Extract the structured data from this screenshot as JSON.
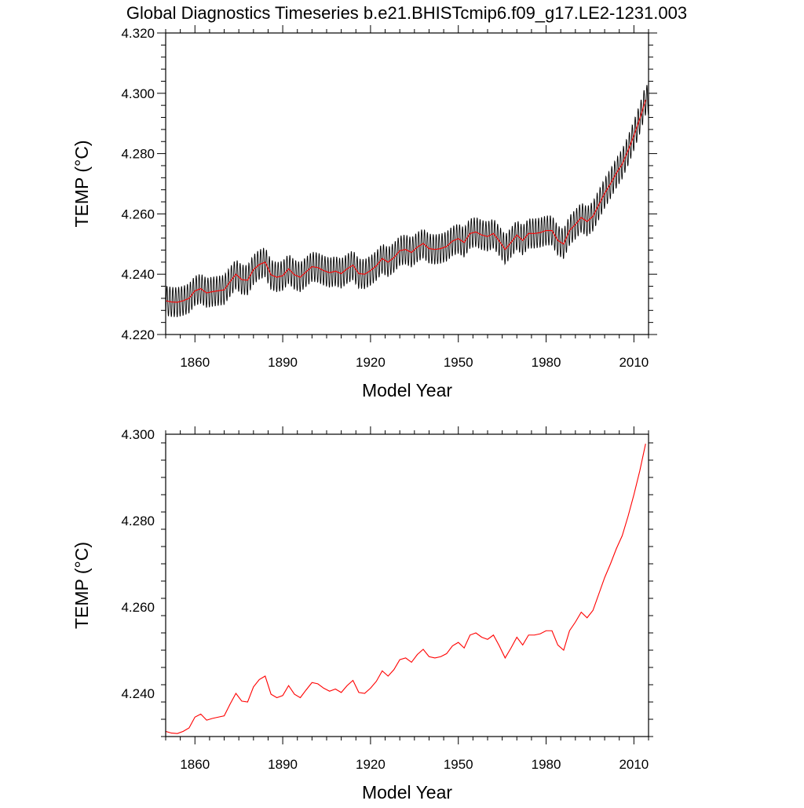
{
  "page": {
    "title": "Global Diagnostics Timeseries b.e21.BHISTcmip6.f09_g17.LE2-1231.003"
  },
  "colors": {
    "raw_series": "#000000",
    "smooth_series": "#ff0000",
    "axes": "#000000",
    "background": "#ffffff"
  },
  "chart_data": [
    {
      "type": "line",
      "title": "Global Diagnostics Timeseries b.e21.BHISTcmip6.f09_g17.LE2-1231.003",
      "xlabel": "Model Year",
      "ylabel": "TEMP (°C)",
      "xlim": [
        1850,
        2015
      ],
      "ylim": [
        4.22,
        4.32
      ],
      "xticks": [
        1860,
        1890,
        1920,
        1950,
        1980,
        2010
      ],
      "xtick_labels": [
        "1860",
        "1890",
        "1920",
        "1950",
        "1980",
        "2010"
      ],
      "yticks": [
        4.22,
        4.24,
        4.26,
        4.28,
        4.3,
        4.32
      ],
      "ytick_labels": [
        "4.220",
        "4.240",
        "4.260",
        "4.280",
        "4.300",
        "4.320"
      ],
      "grid": false,
      "legend": "none",
      "annual_cycle_amplitude": 0.005,
      "series": [
        {
          "style": "monthly, black",
          "color": "#000000",
          "x_start": 1850,
          "x_end": 2015,
          "base": "smoothed series",
          "amplitude": 0.005
        },
        {
          "style": "smoothed, red",
          "color": "#ff0000",
          "x": [
            1850,
            1852,
            1854,
            1856,
            1858,
            1860,
            1862,
            1864,
            1866,
            1868,
            1870,
            1872,
            1874,
            1876,
            1878,
            1880,
            1882,
            1884,
            1886,
            1888,
            1890,
            1892,
            1894,
            1896,
            1898,
            1900,
            1902,
            1904,
            1906,
            1908,
            1910,
            1912,
            1914,
            1916,
            1918,
            1920,
            1922,
            1924,
            1926,
            1928,
            1930,
            1932,
            1934,
            1936,
            1938,
            1940,
            1942,
            1944,
            1946,
            1948,
            1950,
            1952,
            1954,
            1956,
            1958,
            1960,
            1962,
            1964,
            1966,
            1968,
            1970,
            1972,
            1974,
            1976,
            1978,
            1980,
            1982,
            1984,
            1986,
            1988,
            1990,
            1992,
            1994,
            1996,
            1998,
            2000,
            2002,
            2004,
            2006,
            2008,
            2010,
            2012,
            2014
          ],
          "y": [
            4.2312,
            4.2308,
            4.2307,
            4.2312,
            4.232,
            4.2345,
            4.2352,
            4.2338,
            4.2342,
            4.2345,
            4.2348,
            4.2375,
            4.24,
            4.2382,
            4.238,
            4.2415,
            4.2432,
            4.244,
            4.2398,
            4.239,
            4.2395,
            4.2418,
            4.2398,
            4.239,
            4.2408,
            4.2425,
            4.2422,
            4.2412,
            4.2405,
            4.241,
            4.2402,
            4.2418,
            4.243,
            4.2402,
            4.24,
            4.2412,
            4.2428,
            4.2452,
            4.244,
            4.2455,
            4.2478,
            4.2482,
            4.2472,
            4.249,
            4.2502,
            4.2485,
            4.2482,
            4.2485,
            4.2492,
            4.251,
            4.2518,
            4.2505,
            4.2535,
            4.254,
            4.253,
            4.2525,
            4.2535,
            4.251,
            4.2482,
            4.2505,
            4.253,
            4.2512,
            4.2535,
            4.2535,
            4.2538,
            4.2545,
            4.2545,
            4.2512,
            4.25,
            4.2545,
            4.2565,
            4.2588,
            4.2575,
            4.2592,
            4.263,
            4.2668,
            4.27,
            4.2735,
            4.2765,
            4.281,
            4.286,
            4.2915,
            4.2978
          ]
        }
      ]
    },
    {
      "type": "line",
      "title": "",
      "xlabel": "Model Year",
      "ylabel": "TEMP (°C)",
      "xlim": [
        1850,
        2015
      ],
      "ylim": [
        4.23,
        4.3
      ],
      "xticks": [
        1860,
        1890,
        1920,
        1950,
        1980,
        2010
      ],
      "xtick_labels": [
        "1860",
        "1890",
        "1920",
        "1950",
        "1980",
        "2010"
      ],
      "yticks": [
        4.24,
        4.26,
        4.28,
        4.3
      ],
      "ytick_labels": [
        "4.240",
        "4.260",
        "4.280",
        "4.300"
      ],
      "grid": false,
      "legend": "none",
      "series": [
        {
          "style": "annual mean, red",
          "color": "#ff0000",
          "x": [
            1850,
            1852,
            1854,
            1856,
            1858,
            1860,
            1862,
            1864,
            1866,
            1868,
            1870,
            1872,
            1874,
            1876,
            1878,
            1880,
            1882,
            1884,
            1886,
            1888,
            1890,
            1892,
            1894,
            1896,
            1898,
            1900,
            1902,
            1904,
            1906,
            1908,
            1910,
            1912,
            1914,
            1916,
            1918,
            1920,
            1922,
            1924,
            1926,
            1928,
            1930,
            1932,
            1934,
            1936,
            1938,
            1940,
            1942,
            1944,
            1946,
            1948,
            1950,
            1952,
            1954,
            1956,
            1958,
            1960,
            1962,
            1964,
            1966,
            1968,
            1970,
            1972,
            1974,
            1976,
            1978,
            1980,
            1982,
            1984,
            1986,
            1988,
            1990,
            1992,
            1994,
            1996,
            1998,
            2000,
            2002,
            2004,
            2006,
            2008,
            2010,
            2012,
            2014
          ],
          "y": [
            4.2312,
            4.2308,
            4.2307,
            4.2312,
            4.232,
            4.2345,
            4.2352,
            4.2338,
            4.2342,
            4.2345,
            4.2348,
            4.2375,
            4.24,
            4.2382,
            4.238,
            4.2415,
            4.2432,
            4.244,
            4.2398,
            4.239,
            4.2395,
            4.2418,
            4.2398,
            4.239,
            4.2408,
            4.2425,
            4.2422,
            4.2412,
            4.2405,
            4.241,
            4.2402,
            4.2418,
            4.243,
            4.2402,
            4.24,
            4.2412,
            4.2428,
            4.2452,
            4.244,
            4.2455,
            4.2478,
            4.2482,
            4.2472,
            4.249,
            4.2502,
            4.2485,
            4.2482,
            4.2485,
            4.2492,
            4.251,
            4.2518,
            4.2505,
            4.2535,
            4.254,
            4.253,
            4.2525,
            4.2535,
            4.251,
            4.2482,
            4.2505,
            4.253,
            4.2512,
            4.2535,
            4.2535,
            4.2538,
            4.2545,
            4.2545,
            4.2512,
            4.25,
            4.2545,
            4.2565,
            4.2588,
            4.2575,
            4.2592,
            4.263,
            4.2668,
            4.27,
            4.2735,
            4.2765,
            4.281,
            4.286,
            4.2915,
            4.2978
          ]
        }
      ]
    }
  ]
}
